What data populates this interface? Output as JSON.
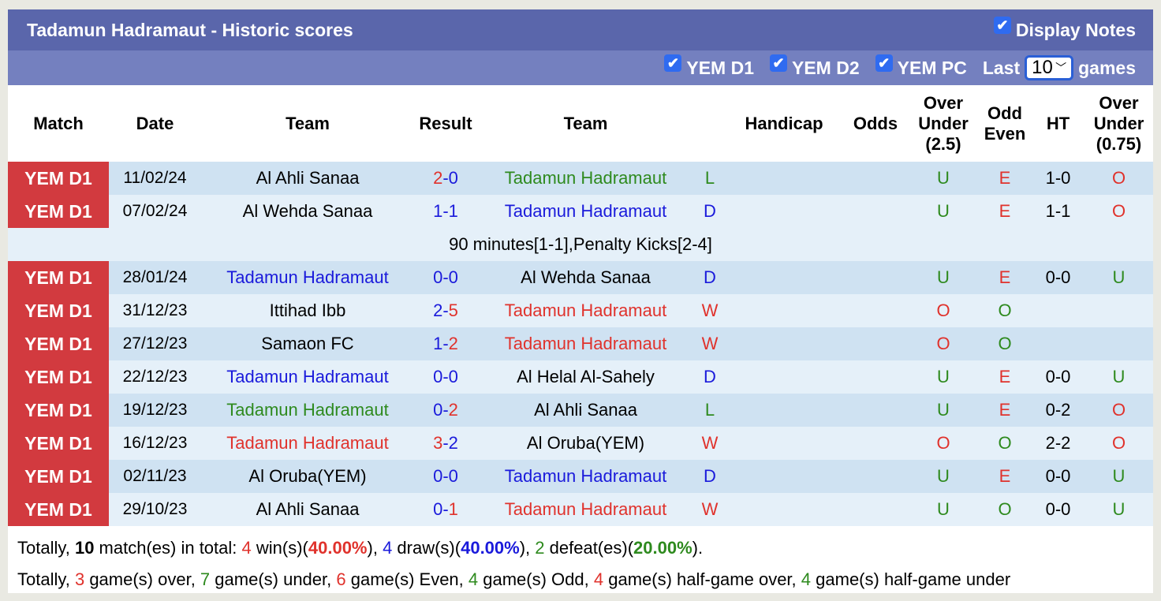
{
  "header": {
    "title": "Tadamun Hadramaut - Historic scores",
    "display_notes_label": "Display Notes",
    "display_notes_checked": true
  },
  "filters": {
    "items": [
      {
        "label": "YEM D1",
        "checked": true
      },
      {
        "label": "YEM D2",
        "checked": true
      },
      {
        "label": "YEM PC",
        "checked": true
      }
    ],
    "last_label": "Last",
    "last_value": "10",
    "games_label": "games"
  },
  "colors": {
    "win": "#e0322c",
    "draw": "#1a1adb",
    "loss": "#2e8a1e",
    "league": "#d23a3f",
    "header": "#5a66ab",
    "subheader": "#7480bf"
  },
  "columns": [
    "Match",
    "Date",
    "Team",
    "Result",
    "Team",
    "",
    "Handicap",
    "Odds",
    "Over Under (2.5)",
    "Odd Even",
    "HT",
    "Over Under (0.75)"
  ],
  "rows": [
    {
      "league": "YEM D1",
      "date": "11/02/24",
      "home": "Al Ahli Sanaa",
      "home_c": "k",
      "s1": "2",
      "s1c": "r",
      "s2": "0",
      "s2c": "b",
      "away": "Tadamun Hadramaut",
      "away_c": "g",
      "res": "L",
      "res_c": "g",
      "handicap": "",
      "odds": "",
      "ou": "U",
      "ou_c": "g",
      "oe": "E",
      "oe_c": "r",
      "ht": "1-0",
      "ou2": "O",
      "ou2_c": "r"
    },
    {
      "league": "YEM D1",
      "date": "07/02/24",
      "home": "Al Wehda Sanaa",
      "home_c": "k",
      "s1": "1",
      "s1c": "b",
      "s2": "1",
      "s2c": "b",
      "away": "Tadamun Hadramaut",
      "away_c": "b",
      "res": "D",
      "res_c": "b",
      "handicap": "",
      "odds": "",
      "ou": "U",
      "ou_c": "g",
      "oe": "E",
      "oe_c": "r",
      "ht": "1-1",
      "ou2": "O",
      "ou2_c": "r",
      "note": "90 minutes[1-1],Penalty Kicks[2-4]"
    },
    {
      "league": "YEM D1",
      "date": "28/01/24",
      "home": "Tadamun Hadramaut",
      "home_c": "b",
      "s1": "0",
      "s1c": "b",
      "s2": "0",
      "s2c": "b",
      "away": "Al Wehda Sanaa",
      "away_c": "k",
      "res": "D",
      "res_c": "b",
      "handicap": "",
      "odds": "",
      "ou": "U",
      "ou_c": "g",
      "oe": "E",
      "oe_c": "r",
      "ht": "0-0",
      "ou2": "U",
      "ou2_c": "g"
    },
    {
      "league": "YEM D1",
      "date": "31/12/23",
      "home": "Ittihad Ibb",
      "home_c": "k",
      "s1": "2",
      "s1c": "b",
      "s2": "5",
      "s2c": "r",
      "away": "Tadamun Hadramaut",
      "away_c": "r",
      "res": "W",
      "res_c": "r",
      "handicap": "",
      "odds": "",
      "ou": "O",
      "ou_c": "r",
      "oe": "O",
      "oe_c": "g",
      "ht": "",
      "ou2": "",
      "ou2_c": "k"
    },
    {
      "league": "YEM D1",
      "date": "27/12/23",
      "home": "Samaon FC",
      "home_c": "k",
      "s1": "1",
      "s1c": "b",
      "s2": "2",
      "s2c": "r",
      "away": "Tadamun Hadramaut",
      "away_c": "r",
      "res": "W",
      "res_c": "r",
      "handicap": "",
      "odds": "",
      "ou": "O",
      "ou_c": "r",
      "oe": "O",
      "oe_c": "g",
      "ht": "",
      "ou2": "",
      "ou2_c": "k"
    },
    {
      "league": "YEM D1",
      "date": "22/12/23",
      "home": "Tadamun Hadramaut",
      "home_c": "b",
      "s1": "0",
      "s1c": "b",
      "s2": "0",
      "s2c": "b",
      "away": "Al Helal Al-Sahely",
      "away_c": "k",
      "res": "D",
      "res_c": "b",
      "handicap": "",
      "odds": "",
      "ou": "U",
      "ou_c": "g",
      "oe": "E",
      "oe_c": "r",
      "ht": "0-0",
      "ou2": "U",
      "ou2_c": "g"
    },
    {
      "league": "YEM D1",
      "date": "19/12/23",
      "home": "Tadamun Hadramaut",
      "home_c": "g",
      "s1": "0",
      "s1c": "b",
      "s2": "2",
      "s2c": "r",
      "away": "Al Ahli Sanaa",
      "away_c": "k",
      "res": "L",
      "res_c": "g",
      "handicap": "",
      "odds": "",
      "ou": "U",
      "ou_c": "g",
      "oe": "E",
      "oe_c": "r",
      "ht": "0-2",
      "ou2": "O",
      "ou2_c": "r"
    },
    {
      "league": "YEM D1",
      "date": "16/12/23",
      "home": "Tadamun Hadramaut",
      "home_c": "r",
      "s1": "3",
      "s1c": "r",
      "s2": "2",
      "s2c": "b",
      "away": "Al Oruba(YEM)",
      "away_c": "k",
      "res": "W",
      "res_c": "r",
      "handicap": "",
      "odds": "",
      "ou": "O",
      "ou_c": "r",
      "oe": "O",
      "oe_c": "g",
      "ht": "2-2",
      "ou2": "O",
      "ou2_c": "r"
    },
    {
      "league": "YEM D1",
      "date": "02/11/23",
      "home": "Al Oruba(YEM)",
      "home_c": "k",
      "s1": "0",
      "s1c": "b",
      "s2": "0",
      "s2c": "b",
      "away": "Tadamun Hadramaut",
      "away_c": "b",
      "res": "D",
      "res_c": "b",
      "handicap": "",
      "odds": "",
      "ou": "U",
      "ou_c": "g",
      "oe": "E",
      "oe_c": "r",
      "ht": "0-0",
      "ou2": "U",
      "ou2_c": "g"
    },
    {
      "league": "YEM D1",
      "date": "29/10/23",
      "home": "Al Ahli Sanaa",
      "home_c": "k",
      "s1": "0",
      "s1c": "b",
      "s2": "1",
      "s2c": "r",
      "away": "Tadamun Hadramaut",
      "away_c": "r",
      "res": "W",
      "res_c": "r",
      "handicap": "",
      "odds": "",
      "ou": "U",
      "ou_c": "g",
      "oe": "O",
      "oe_c": "g",
      "ht": "0-0",
      "ou2": "U",
      "ou2_c": "g"
    }
  ],
  "summary1": [
    [
      "Totally, ",
      "k",
      0
    ],
    [
      "10",
      "k",
      1
    ],
    [
      " match(es) in total: ",
      "k",
      0
    ],
    [
      "4",
      "r",
      0
    ],
    [
      " win(s)(",
      "k",
      0
    ],
    [
      "40.00%",
      "r",
      1
    ],
    [
      "), ",
      "k",
      0
    ],
    [
      "4",
      "b",
      0
    ],
    [
      " draw(s)(",
      "k",
      0
    ],
    [
      "40.00%",
      "b",
      1
    ],
    [
      "), ",
      "k",
      0
    ],
    [
      "2",
      "g",
      0
    ],
    [
      " defeat(es)(",
      "k",
      0
    ],
    [
      "20.00%",
      "g",
      1
    ],
    [
      ").",
      "k",
      0
    ]
  ],
  "summary2": [
    [
      "Totally, ",
      "k",
      0
    ],
    [
      "3",
      "r",
      0
    ],
    [
      " game(s) over, ",
      "k",
      0
    ],
    [
      "7",
      "g",
      0
    ],
    [
      " game(s) under, ",
      "k",
      0
    ],
    [
      "6",
      "r",
      0
    ],
    [
      " game(s) Even, ",
      "k",
      0
    ],
    [
      "4",
      "g",
      0
    ],
    [
      " game(s) Odd, ",
      "k",
      0
    ],
    [
      "4",
      "r",
      0
    ],
    [
      " game(s) half-game over, ",
      "k",
      0
    ],
    [
      "4",
      "g",
      0
    ],
    [
      " game(s) half-game under",
      "k",
      0
    ]
  ]
}
